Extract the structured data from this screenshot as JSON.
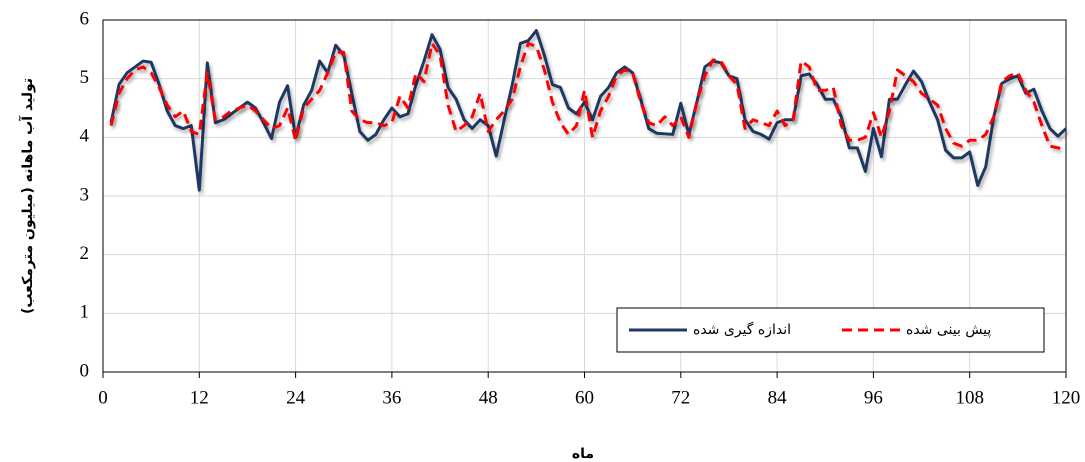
{
  "chart_data": {
    "type": "line",
    "xlabel": "ماه",
    "ylabel": "تولید آب ماهانه (میلیون مترمکعب)",
    "x": [
      1,
      2,
      3,
      4,
      5,
      6,
      7,
      8,
      9,
      10,
      11,
      12,
      13,
      14,
      15,
      16,
      17,
      18,
      19,
      20,
      21,
      22,
      23,
      24,
      25,
      26,
      27,
      28,
      29,
      30,
      31,
      32,
      33,
      34,
      35,
      36,
      37,
      38,
      39,
      40,
      41,
      42,
      43,
      44,
      45,
      46,
      47,
      48,
      49,
      50,
      51,
      52,
      53,
      54,
      55,
      56,
      57,
      58,
      59,
      60,
      61,
      62,
      63,
      64,
      65,
      66,
      67,
      68,
      69,
      70,
      71,
      72,
      73,
      74,
      75,
      76,
      77,
      78,
      79,
      80,
      81,
      82,
      83,
      84,
      85,
      86,
      87,
      88,
      89,
      90,
      91,
      92,
      93,
      94,
      95,
      96,
      97,
      98,
      99,
      100,
      101,
      102,
      103,
      104,
      105,
      106,
      107,
      108,
      109,
      110,
      111,
      112,
      113,
      114,
      115,
      116,
      117,
      118,
      119,
      120
    ],
    "series": [
      {
        "name": "اندازه گیری شده",
        "color": "#1f3864",
        "line_style": "solid",
        "values": [
          4.25,
          4.9,
          5.1,
          5.2,
          5.3,
          5.28,
          4.9,
          4.45,
          4.2,
          4.15,
          4.2,
          3.1,
          5.27,
          4.25,
          4.3,
          4.4,
          4.5,
          4.6,
          4.5,
          4.25,
          3.98,
          4.6,
          4.88,
          4.0,
          4.55,
          4.8,
          5.3,
          5.1,
          5.57,
          5.4,
          4.75,
          4.1,
          3.95,
          4.05,
          4.3,
          4.5,
          4.35,
          4.4,
          4.9,
          5.3,
          5.75,
          5.5,
          4.85,
          4.65,
          4.3,
          4.15,
          4.3,
          4.2,
          3.68,
          4.3,
          4.9,
          5.6,
          5.65,
          5.82,
          5.4,
          4.9,
          4.85,
          4.5,
          4.4,
          4.6,
          4.3,
          4.7,
          4.85,
          5.1,
          5.2,
          5.1,
          4.65,
          4.15,
          4.07,
          4.06,
          4.05,
          4.58,
          4.05,
          4.6,
          5.2,
          5.3,
          5.27,
          5.05,
          5.0,
          4.3,
          4.1,
          4.05,
          3.97,
          4.25,
          4.3,
          4.3,
          5.05,
          5.08,
          4.9,
          4.65,
          4.65,
          4.35,
          3.82,
          3.82,
          3.42,
          4.15,
          3.67,
          4.65,
          4.65,
          4.9,
          5.13,
          4.95,
          4.6,
          4.3,
          3.78,
          3.65,
          3.65,
          3.75,
          3.18,
          3.5,
          4.35,
          4.92,
          5.0,
          5.05,
          4.75,
          4.82,
          4.45,
          4.15,
          4.02,
          4.15
        ]
      },
      {
        "name": "پیش بینی شده",
        "color": "#ff0000",
        "line_style": "dashed",
        "values": [
          4.2,
          4.75,
          5.0,
          5.15,
          5.2,
          5.1,
          4.85,
          4.55,
          4.35,
          4.45,
          4.1,
          4.05,
          5.1,
          4.3,
          4.35,
          4.45,
          4.5,
          4.55,
          4.45,
          4.3,
          4.15,
          4.2,
          4.5,
          3.95,
          4.5,
          4.65,
          4.8,
          5.1,
          5.45,
          5.45,
          4.45,
          4.3,
          4.25,
          4.25,
          4.2,
          4.25,
          4.7,
          4.5,
          5.1,
          4.95,
          5.6,
          5.4,
          4.55,
          4.1,
          4.2,
          4.35,
          4.75,
          4.1,
          4.3,
          4.45,
          4.65,
          5.2,
          5.6,
          5.55,
          5.15,
          4.6,
          4.25,
          4.05,
          4.2,
          4.8,
          4.0,
          4.45,
          4.7,
          5.05,
          5.15,
          5.1,
          4.6,
          4.25,
          4.2,
          4.35,
          4.2,
          4.35,
          4.0,
          4.6,
          5.05,
          5.32,
          5.3,
          5.05,
          4.9,
          4.15,
          4.3,
          4.25,
          4.2,
          4.45,
          4.2,
          4.3,
          5.3,
          5.2,
          4.8,
          4.8,
          4.85,
          4.2,
          3.95,
          3.95,
          4.0,
          4.42,
          4.0,
          4.45,
          5.15,
          5.05,
          4.95,
          4.75,
          4.65,
          4.55,
          4.15,
          3.9,
          3.85,
          3.95,
          3.95,
          4.05,
          4.35,
          4.95,
          5.05,
          5.1,
          4.8,
          4.6,
          4.2,
          3.85,
          3.82,
          3.8
        ]
      }
    ],
    "xlim": [
      0,
      120
    ],
    "xticks": [
      0,
      12,
      24,
      36,
      48,
      60,
      72,
      84,
      96,
      108,
      120
    ],
    "ylim": [
      0,
      6
    ],
    "yticks": [
      0,
      1,
      2,
      3,
      4,
      5,
      6
    ],
    "grid": true,
    "legend": "lower right"
  }
}
